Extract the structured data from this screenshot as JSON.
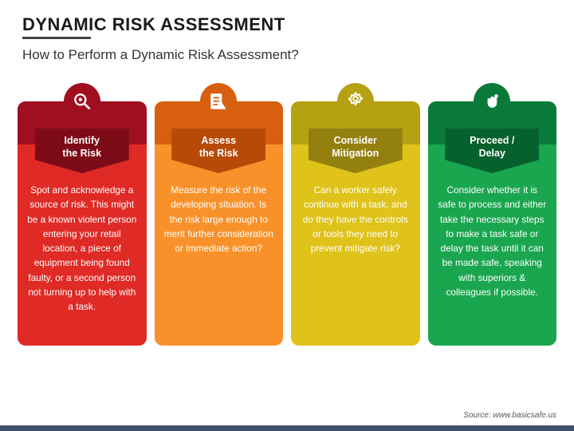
{
  "header": {
    "title": "DYNAMIC RISK ASSESSMENT",
    "subtitle": "How to Perform a Dynamic Risk Assessment?"
  },
  "cards": [
    {
      "icon": "magnify",
      "label": "Identify\nthe Risk",
      "body": "Spot and acknowledge a source of risk. This might be a known violent person entering your retail location, a piece of equipment being found faulty, or a second person not turning up to help with a task.",
      "colors": {
        "tab": "#a00f1f",
        "top": "#a00f1f",
        "chev": "#7d0b17",
        "body": "#df2a26"
      }
    },
    {
      "icon": "checklist",
      "label": "Assess\nthe Risk",
      "body": "Measure the risk of the developing situation. Is the risk large enough to merit further consideration or immediate action?",
      "colors": {
        "tab": "#d85f0e",
        "top": "#d85f0e",
        "chev": "#b84a08",
        "body": "#f9912a"
      }
    },
    {
      "icon": "gear",
      "label": "Consider\nMitigation",
      "body": "Can a worker safely continue with a task, and do they have the controls or tools they need to prevent mitigate risk?",
      "colors": {
        "tab": "#b6a112",
        "top": "#b6a112",
        "chev": "#93800f",
        "body": "#dfc21a"
      }
    },
    {
      "icon": "fist",
      "label": "Proceed /\nDelay",
      "body": "Consider whether it is safe to process and either take the necessary steps to make a task safe or delay the task until it can be made safe, speaking with superiors & colleagues if possible.",
      "colors": {
        "tab": "#0a7a3a",
        "top": "#0a7a3a",
        "chev": "#07612d",
        "body": "#1aa64f"
      }
    }
  ],
  "source": "Source: www.basicsafe.us",
  "layout": {
    "title_fontsize": 22,
    "subtitle_fontsize": 17,
    "card_label_fontsize": 12.5,
    "card_body_fontsize": 11.8,
    "footer_bar_color": "#3e506b",
    "background": "#ffffff"
  }
}
